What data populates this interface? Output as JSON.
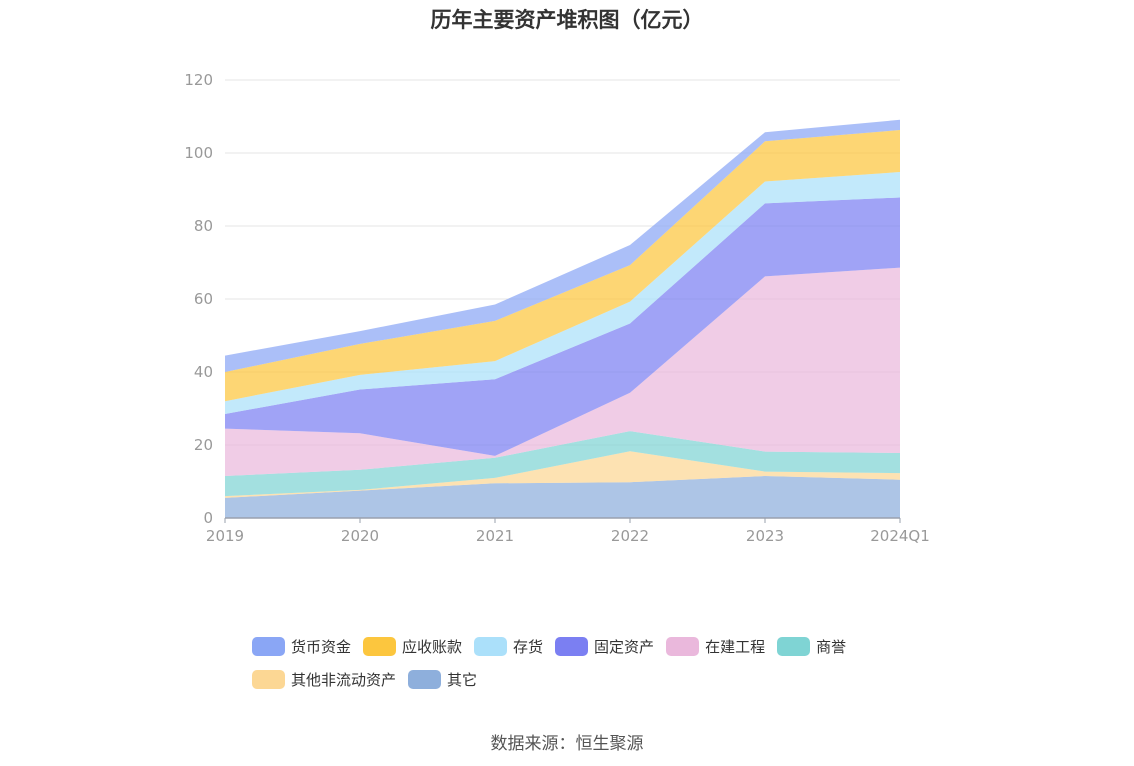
{
  "chart_data": {
    "type": "area",
    "stacked": true,
    "title": "历年主要资产堆积图（亿元）",
    "x": [
      "2019",
      "2020",
      "2021",
      "2022",
      "2023",
      "2024Q1"
    ],
    "ylim": [
      0,
      120
    ],
    "yticks": [
      0,
      20,
      40,
      60,
      80,
      100,
      120
    ],
    "grid": true,
    "legend_position": "bottom",
    "series": [
      {
        "name": "其它",
        "color": "#8eafdc",
        "values": [
          5.5,
          7.5,
          9.5,
          9.8,
          11.5,
          10.5
        ]
      },
      {
        "name": "其他非流动资产",
        "color": "#fcd794",
        "values": [
          0.5,
          0.2,
          1.5,
          8.5,
          1.2,
          1.8
        ]
      },
      {
        "name": "商誉",
        "color": "#7fd4d4",
        "values": [
          5.5,
          5.5,
          5.5,
          5.5,
          5.5,
          5.5
        ]
      },
      {
        "name": "在建工程",
        "color": "#eab8dc",
        "values": [
          13.0,
          10.0,
          0.5,
          10.5,
          48.0,
          50.8
        ]
      },
      {
        "name": "固定资产",
        "color": "#7b7ff2",
        "values": [
          4.0,
          12.0,
          21.0,
          19.0,
          20.0,
          19.2
        ]
      },
      {
        "name": "存货",
        "color": "#abe0fa",
        "values": [
          3.5,
          4.0,
          5.0,
          6.0,
          6.0,
          7.0
        ]
      },
      {
        "name": "应收账款",
        "color": "#fcc63e",
        "values": [
          8.0,
          8.5,
          11.0,
          10.0,
          11.0,
          11.5
        ]
      },
      {
        "name": "货币资金",
        "color": "#8aa6f5",
        "values": [
          4.5,
          3.5,
          4.5,
          5.5,
          2.5,
          2.8
        ]
      }
    ],
    "legend_order": [
      "货币资金",
      "应收账款",
      "存货",
      "固定资产",
      "在建工程",
      "商誉",
      "其他非流动资产",
      "其它"
    ]
  },
  "source": "数据来源：恒生聚源"
}
